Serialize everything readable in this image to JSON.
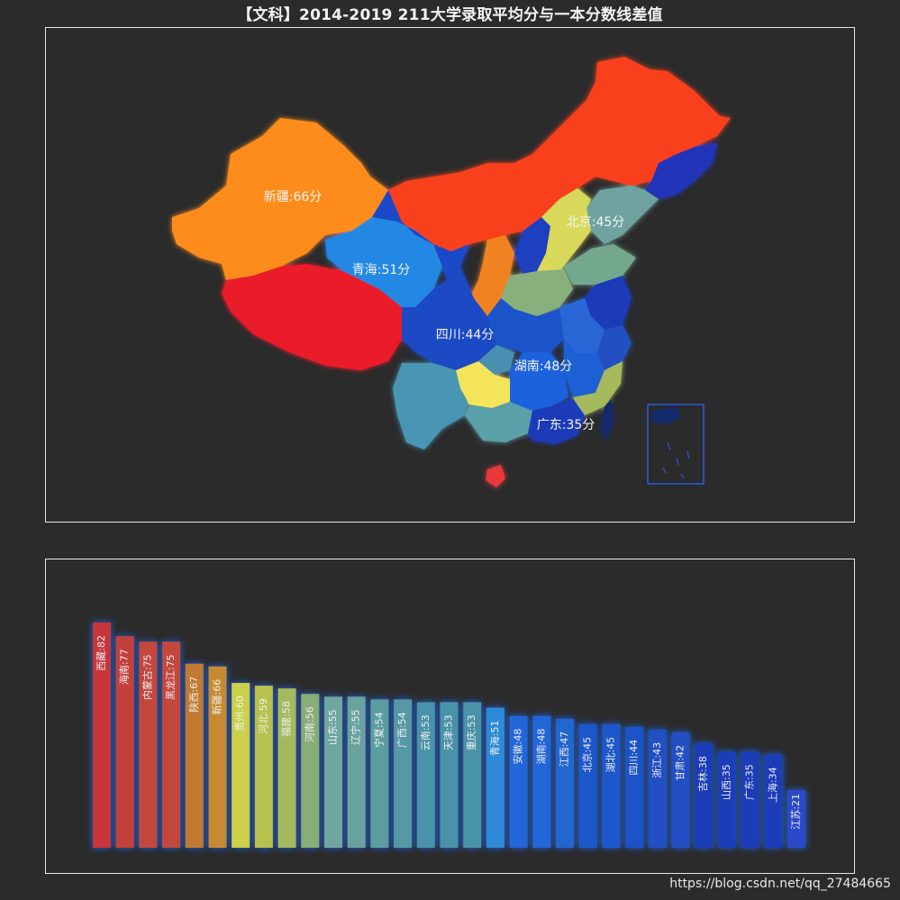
{
  "title": "【文科】2014-2019 211大学录取平均分与一本分数线差值",
  "watermark": "https://blog.csdn.net/qq_27484665",
  "colors": {
    "background": "#2b2b2c",
    "border": "#e6e6e6",
    "glow": "#1e6fff",
    "scale_low": "#1a34c8",
    "scale_mid": "#f0e65a",
    "scale_high": "#ff2a2a"
  },
  "map": {
    "labels": [
      {
        "province": "新疆",
        "value": 66,
        "text": "新疆:66分"
      },
      {
        "province": "青海",
        "value": 51,
        "text": "青海:51分"
      },
      {
        "province": "北京",
        "value": 45,
        "text": "北京:45分"
      },
      {
        "province": "四川",
        "value": 44,
        "text": "四川:44分"
      },
      {
        "province": "湖南",
        "value": 48,
        "text": "湖南:48分"
      },
      {
        "province": "广东",
        "value": 35,
        "text": "广东:35分"
      }
    ]
  },
  "chart_data": {
    "type": "bar",
    "categories": [
      "西藏",
      "海南",
      "内蒙古",
      "黑龙江",
      "陕西",
      "新疆",
      "贵州",
      "河北",
      "福建",
      "河南",
      "山东",
      "辽宁",
      "宁夏",
      "广西",
      "云南",
      "天津",
      "重庆",
      "青海",
      "安徽",
      "湖南",
      "江西",
      "北京",
      "湖北",
      "四川",
      "浙江",
      "甘肃",
      "吉林",
      "山西",
      "广东",
      "上海",
      "江苏"
    ],
    "values": [
      82,
      77,
      75,
      75,
      67,
      66,
      60,
      59,
      58,
      56,
      55,
      55,
      54,
      54,
      53,
      53,
      53,
      51,
      48,
      48,
      47,
      45,
      45,
      44,
      43,
      42,
      38,
      35,
      35,
      34,
      21
    ],
    "data_labels": [
      "西藏:82",
      "海南:77",
      "内蒙古:75",
      "黑龙江:75",
      "陕西:67",
      "新疆:66",
      "贵州:60",
      "河北:59",
      "福建:58",
      "河南:56",
      "山东:55",
      "辽宁:55",
      "宁夏:54",
      "广西:54",
      "云南:53",
      "天津:53",
      "重庆:53",
      "青海:51",
      "安徽:48",
      "湖南:48",
      "江西:47",
      "北京:45",
      "湖北:45",
      "四川:44",
      "浙江:43",
      "甘肃:42",
      "吉林:38",
      "山西:35",
      "广东:35",
      "上海:34",
      "江苏:21"
    ],
    "bar_colors": [
      "#c8353a",
      "#c4403a",
      "#c4463c",
      "#c4463c",
      "#c27a33",
      "#c78a33",
      "#cdd04a",
      "#b6c24e",
      "#a4ba5c",
      "#88ae76",
      "#70a6a0",
      "#6aa2a0",
      "#5c9ea0",
      "#5698a6",
      "#4a93a8",
      "#4a93a8",
      "#4a93a8",
      "#2d8ad8",
      "#2266d8",
      "#2266d8",
      "#2066d0",
      "#1c58cc",
      "#1c58cc",
      "#1f52c8",
      "#2050c4",
      "#2050c4",
      "#1d3eb8",
      "#1d3eb8",
      "#1d3eb8",
      "#1d3eb8",
      "#2a48c8"
    ]
  }
}
